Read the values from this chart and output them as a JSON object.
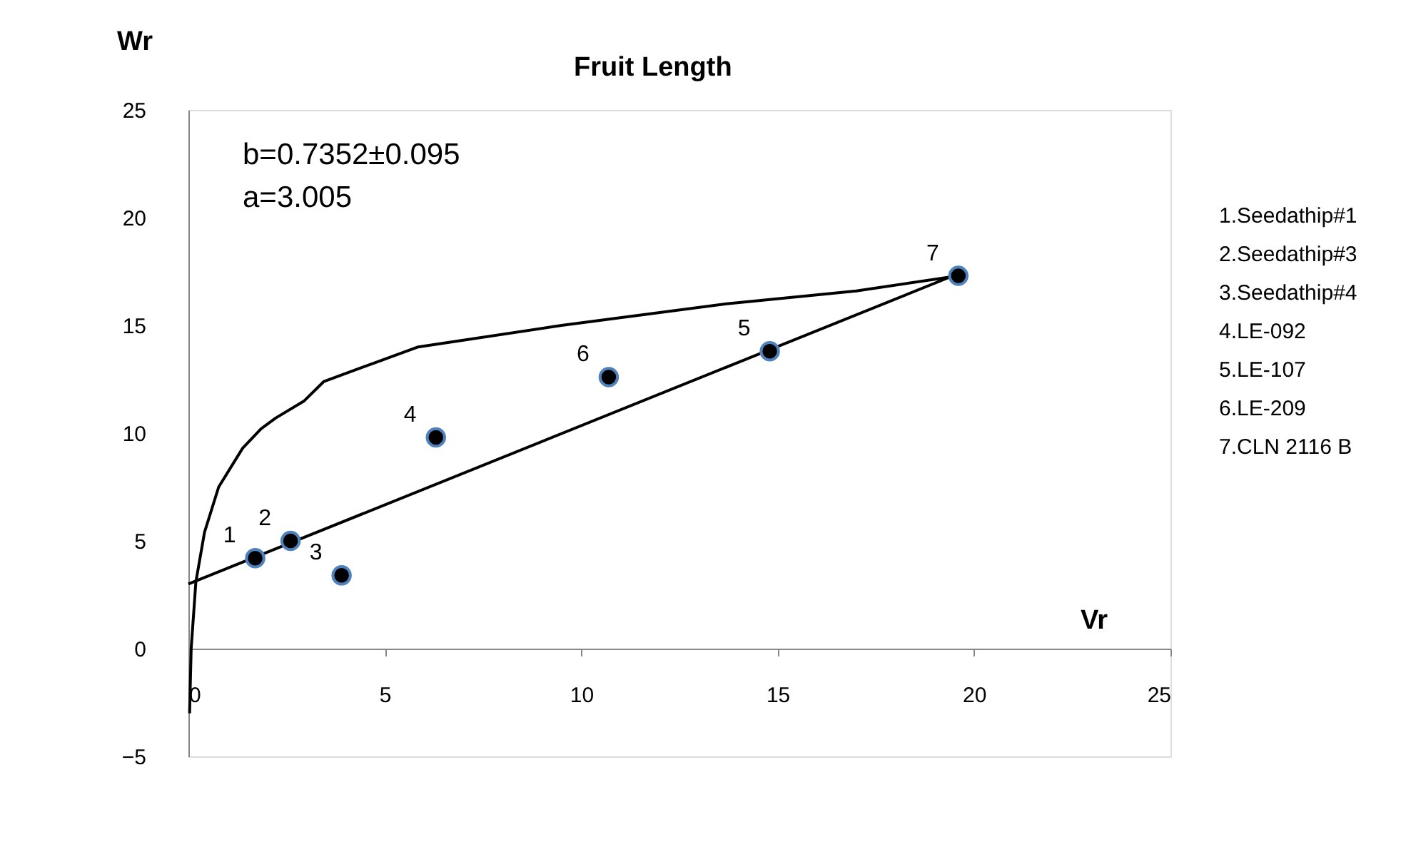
{
  "chart_data": {
    "type": "scatter",
    "title": "Fruit Length",
    "xlabel": "Vr",
    "ylabel": "Wr",
    "xlim": [
      0,
      25
    ],
    "ylim": [
      -5,
      25
    ],
    "xticks": [
      0,
      5,
      10,
      15,
      20,
      25
    ],
    "yticks": [
      -5,
      0,
      5,
      10,
      15,
      20,
      25
    ],
    "grid": false,
    "series": [
      {
        "type": "line",
        "marker": "none",
        "color": "#000000",
        "x": [
          0.03,
          0.07,
          0.19,
          0.41,
          0.77,
          1.38,
          1.85,
          2.22,
          2.95,
          3.45,
          5.85,
          9.5,
          13.7,
          17.0,
          19.6
        ],
        "values": [
          -3.0,
          0.0,
          3.1,
          5.4,
          7.5,
          9.3,
          10.2,
          10.7,
          11.5,
          12.4,
          14.0,
          15.0,
          16.0,
          16.6,
          17.3
        ]
      },
      {
        "type": "line",
        "marker": "none",
        "color": "#000000",
        "x": [
          0,
          19.6
        ],
        "values": [
          3.0,
          17.4
        ]
      },
      {
        "marker": "circle",
        "color": "#000000",
        "x": [
          1.7,
          2.6,
          3.9,
          6.3,
          14.8,
          10.7,
          19.6
        ],
        "values": [
          4.2,
          5.0,
          3.4,
          9.8,
          13.8,
          12.6,
          17.3
        ]
      }
    ],
    "annotations": [
      {
        "text": "1",
        "x": 1.7,
        "y": 4.2
      },
      {
        "text": "2",
        "x": 2.6,
        "y": 5.0
      },
      {
        "text": "3",
        "x": 3.9,
        "y": 3.4
      },
      {
        "text": "4",
        "x": 6.3,
        "y": 9.8
      },
      {
        "text": "5",
        "x": 14.8,
        "y": 13.8
      },
      {
        "text": "6",
        "x": 10.7,
        "y": 12.6
      },
      {
        "text": "7",
        "x": 19.6,
        "y": 17.3
      },
      "b=0.7352±0.095",
      "a=3.005",
      "1.Seedathip#1",
      "2.Seedathip#3",
      "3.Seedathip#4",
      "4.LE-092",
      "5.LE-107",
      "6.LE-209",
      "7.CLN 2116 B"
    ]
  }
}
